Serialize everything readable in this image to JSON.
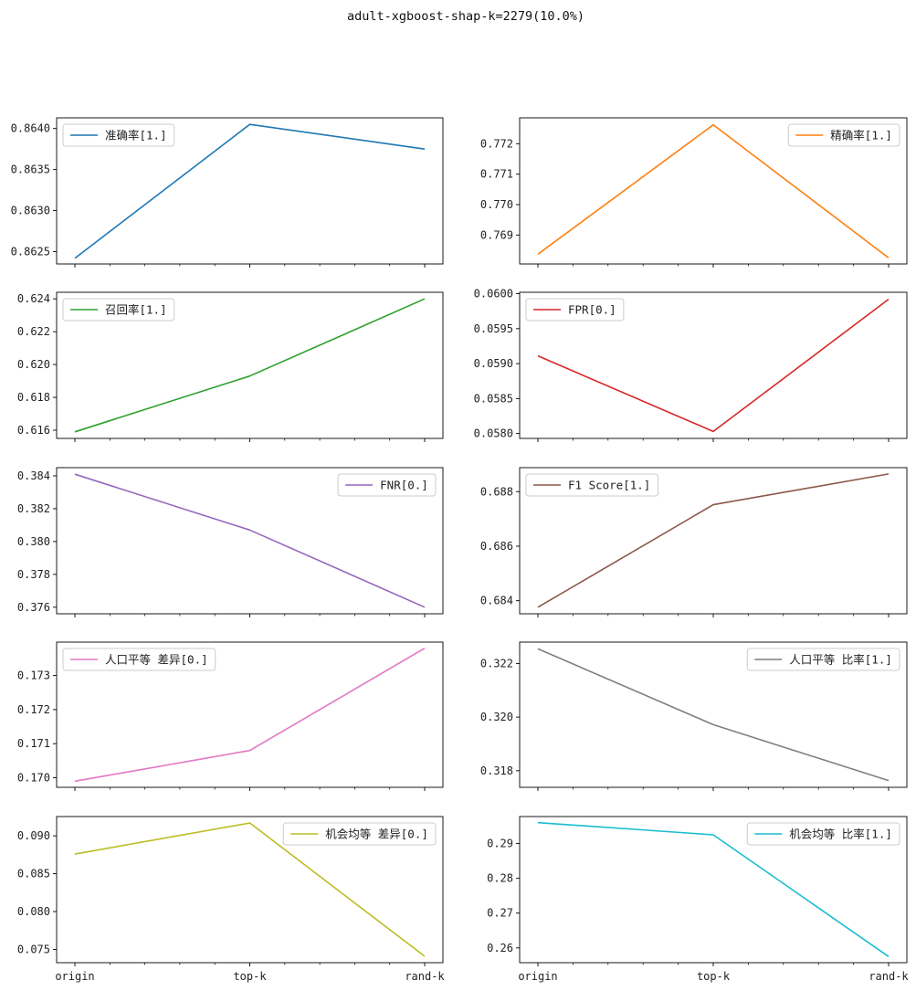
{
  "figure": {
    "title": "adult-xgboost-shap-k=2279(10.0%)"
  },
  "chart_data": [
    {
      "type": "line",
      "series": [
        {
          "name": "准确率[1.]",
          "color": "#1f77b4",
          "values": [
            0.86242,
            0.86405,
            0.86375
          ]
        }
      ],
      "categories": [
        "origin",
        "top-k",
        "rand-k"
      ],
      "ylim": [
        0.86235,
        0.86413
      ],
      "yticks": [
        0.8625,
        0.863,
        0.8635,
        0.864
      ],
      "ytick_labels": [
        "0.8625",
        "0.8630",
        "0.8635",
        "0.8640"
      ],
      "legend": "upper-left",
      "grid": false
    },
    {
      "type": "line",
      "series": [
        {
          "name": "精确率[1.]",
          "color": "#ff7f0e",
          "values": [
            0.76837,
            0.77262,
            0.76825
          ]
        }
      ],
      "categories": [
        "origin",
        "top-k",
        "rand-k"
      ],
      "ylim": [
        0.76805,
        0.77285
      ],
      "yticks": [
        0.769,
        0.77,
        0.771,
        0.772
      ],
      "ytick_labels": [
        "0.769",
        "0.770",
        "0.771",
        "0.772"
      ],
      "legend": "upper-right",
      "grid": false
    },
    {
      "type": "line",
      "series": [
        {
          "name": "召回率[1.]",
          "color": "#2ca02c",
          "values": [
            0.6159,
            0.6193,
            0.624
          ]
        }
      ],
      "categories": [
        "origin",
        "top-k",
        "rand-k"
      ],
      "ylim": [
        0.6155,
        0.6244
      ],
      "yticks": [
        0.616,
        0.618,
        0.62,
        0.622,
        0.624
      ],
      "ytick_labels": [
        "0.616",
        "0.618",
        "0.620",
        "0.622",
        "0.624"
      ],
      "legend": "upper-left",
      "grid": false
    },
    {
      "type": "line",
      "series": [
        {
          "name": "FPR[0.]",
          "color": "#d62728",
          "values": [
            0.05911,
            0.05803,
            0.05992
          ]
        }
      ],
      "categories": [
        "origin",
        "top-k",
        "rand-k"
      ],
      "ylim": [
        0.05793,
        0.06002
      ],
      "yticks": [
        0.058,
        0.0585,
        0.059,
        0.0595,
        0.06
      ],
      "ytick_labels": [
        "0.0580",
        "0.0585",
        "0.0590",
        "0.0595",
        "0.0600"
      ],
      "legend": "upper-left",
      "grid": false
    },
    {
      "type": "line",
      "series": [
        {
          "name": "FNR[0.]",
          "color": "#9467bd",
          "values": [
            0.3841,
            0.3807,
            0.376
          ]
        }
      ],
      "categories": [
        "origin",
        "top-k",
        "rand-k"
      ],
      "ylim": [
        0.3756,
        0.3845
      ],
      "yticks": [
        0.376,
        0.378,
        0.38,
        0.382,
        0.384
      ],
      "ytick_labels": [
        "0.376",
        "0.378",
        "0.380",
        "0.382",
        "0.384"
      ],
      "legend": "upper-right",
      "grid": false
    },
    {
      "type": "line",
      "series": [
        {
          "name": "F1 Score[1.]",
          "color": "#8c564b",
          "values": [
            0.68376,
            0.68752,
            0.68865
          ]
        }
      ],
      "categories": [
        "origin",
        "top-k",
        "rand-k"
      ],
      "ylim": [
        0.68352,
        0.68888
      ],
      "yticks": [
        0.684,
        0.686,
        0.688
      ],
      "ytick_labels": [
        "0.684",
        "0.686",
        "0.688"
      ],
      "legend": "upper-left",
      "grid": false
    },
    {
      "type": "line",
      "series": [
        {
          "name": "人口平等 差异[0.]",
          "color": "#e377c2",
          "values": [
            0.1699,
            0.1708,
            0.1738
          ]
        }
      ],
      "categories": [
        "origin",
        "top-k",
        "rand-k"
      ],
      "ylim": [
        0.16972,
        0.17398
      ],
      "yticks": [
        0.17,
        0.171,
        0.172,
        0.173
      ],
      "ytick_labels": [
        "0.170",
        "0.171",
        "0.172",
        "0.173"
      ],
      "legend": "upper-left",
      "grid": false
    },
    {
      "type": "line",
      "series": [
        {
          "name": "人口平等 比率[1.]",
          "color": "#7f7f7f",
          "values": [
            0.32255,
            0.31972,
            0.31763
          ]
        }
      ],
      "categories": [
        "origin",
        "top-k",
        "rand-k"
      ],
      "ylim": [
        0.31738,
        0.3228
      ],
      "yticks": [
        0.318,
        0.32,
        0.322
      ],
      "ytick_labels": [
        "0.318",
        "0.320",
        "0.322"
      ],
      "legend": "upper-right",
      "grid": false
    },
    {
      "type": "line",
      "series": [
        {
          "name": "机会均等 差异[0.]",
          "color": "#bcbd22",
          "values": [
            0.0876,
            0.0917,
            0.0741
          ]
        }
      ],
      "categories": [
        "origin",
        "top-k",
        "rand-k"
      ],
      "ylim": [
        0.07325,
        0.09255
      ],
      "yticks": [
        0.075,
        0.08,
        0.085,
        0.09
      ],
      "ytick_labels": [
        "0.075",
        "0.080",
        "0.085",
        "0.090"
      ],
      "legend": "upper-right",
      "grid": false
    },
    {
      "type": "line",
      "series": [
        {
          "name": "机会均等 比率[1.]",
          "color": "#17becf",
          "values": [
            0.296,
            0.2925,
            0.2575
          ]
        }
      ],
      "categories": [
        "origin",
        "top-k",
        "rand-k"
      ],
      "ylim": [
        0.25575,
        0.29775
      ],
      "yticks": [
        0.26,
        0.27,
        0.28,
        0.29
      ],
      "ytick_labels": [
        "0.26",
        "0.27",
        "0.28",
        "0.29"
      ],
      "legend": "upper-right",
      "grid": false
    }
  ]
}
